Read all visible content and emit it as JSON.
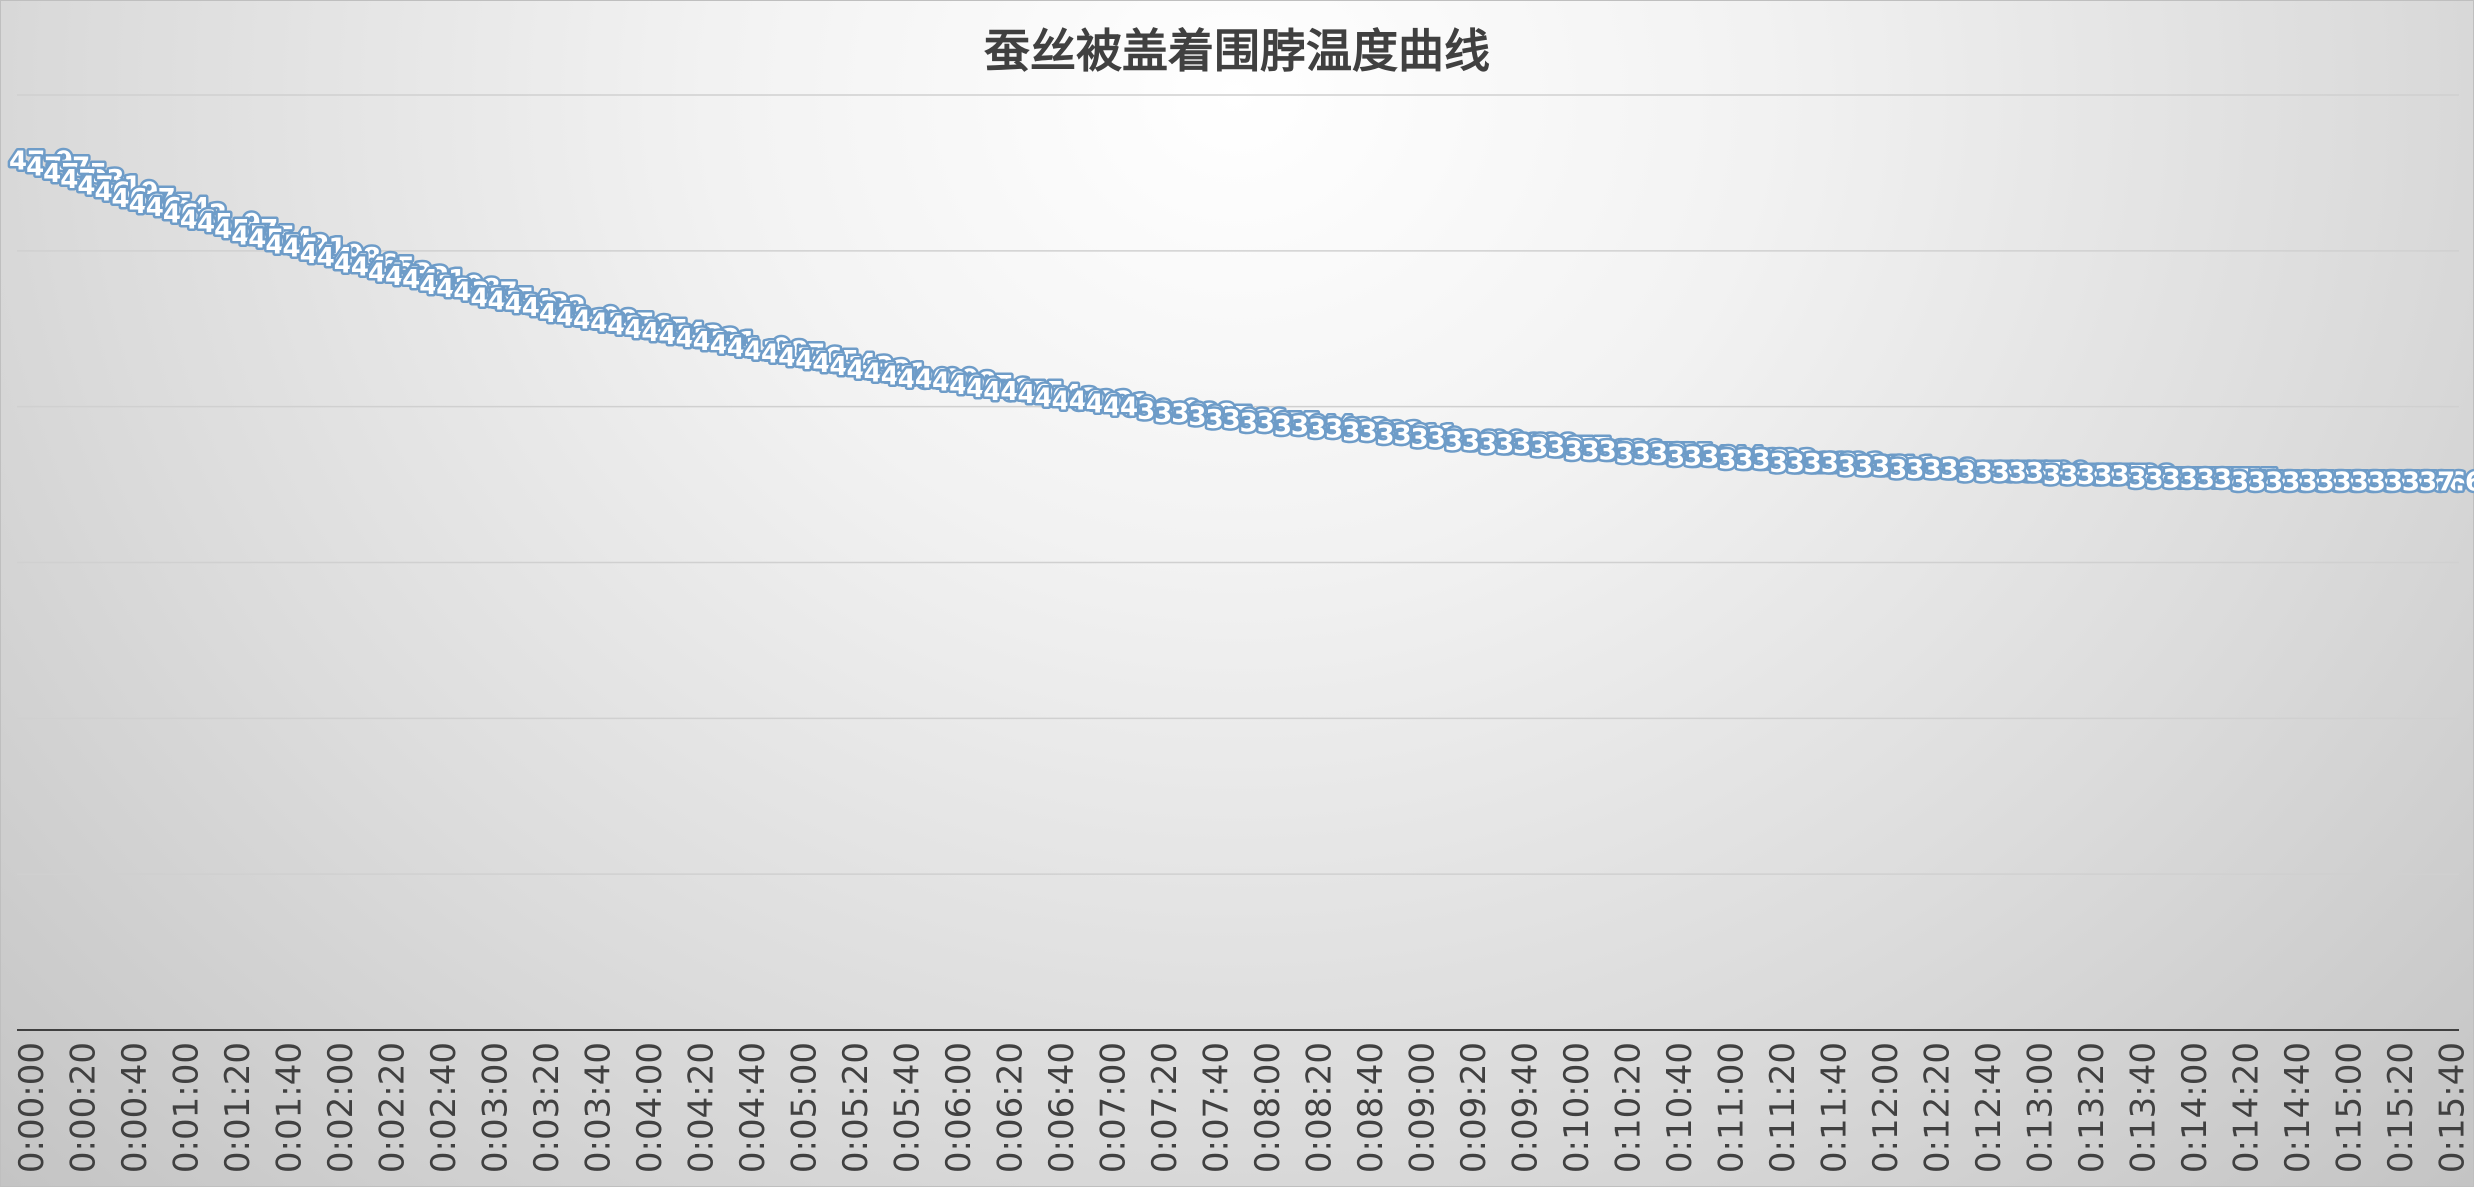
{
  "chart_data": {
    "type": "line",
    "title": "蚕丝被盖着围脖温度曲线",
    "xlabel": "",
    "ylabel": "",
    "x_ticks": [
      "0:00:00",
      "0:00:20",
      "0:00:40",
      "0:01:00",
      "0:01:20",
      "0:01:40",
      "0:02:00",
      "0:02:20",
      "0:02:40",
      "0:03:00",
      "0:03:20",
      "0:03:40",
      "0:04:00",
      "0:04:20",
      "0:04:40",
      "0:05:00",
      "0:05:20",
      "0:05:40",
      "0:06:00",
      "0:06:20",
      "0:06:40",
      "0:07:00",
      "0:07:20",
      "0:07:40",
      "0:08:00",
      "0:08:20",
      "0:08:40",
      "0:09:00",
      "0:09:20",
      "0:09:40",
      "0:10:00",
      "0:10:20",
      "0:10:40",
      "0:11:00",
      "0:11:20",
      "0:11:40",
      "0:12:00",
      "0:12:20",
      "0:12:40",
      "0:13:00",
      "0:13:20",
      "0:13:40",
      "0:14:00",
      "0:14:20",
      "0:14:40",
      "0:15:00",
      "0:15:20",
      "0:15:40"
    ],
    "series": [
      {
        "color": "#6e9cc8",
        "values": [
          47.9,
          47.7,
          47.5,
          47.3,
          47.1,
          46.9,
          46.7,
          46.5,
          46.4,
          46.2,
          46.0,
          45.9,
          45.7,
          45.5,
          45.4,
          45.2,
          45.1,
          44.9,
          44.8,
          44.6,
          44.5,
          44.3,
          44.2,
          44.1,
          43.9,
          43.8,
          43.7,
          43.5,
          43.4,
          43.3,
          43.2,
          43.0,
          42.9,
          42.8,
          42.7,
          42.6,
          42.5,
          42.4,
          42.3,
          42.2,
          42.1,
          42.0,
          41.9,
          41.8,
          41.7,
          41.6,
          41.5,
          41.4,
          41.3,
          41.2,
          41.1,
          41.0,
          40.9,
          40.9,
          40.8,
          40.7,
          40.6,
          40.5,
          40.5,
          40.4,
          40.3,
          40.2,
          40.2,
          40.1,
          40.0,
          40.0,
          39.9,
          39.8,
          39.8,
          39.7,
          39.6,
          39.6,
          39.5,
          39.5,
          39.4,
          39.4,
          39.3,
          39.3,
          39.2,
          39.2,
          39.1,
          39.1,
          39.0,
          39.0,
          38.9,
          38.9,
          38.8,
          38.8,
          38.8,
          38.7,
          38.7,
          38.6,
          38.6,
          38.6,
          38.5,
          38.5,
          38.5,
          38.4,
          38.4,
          38.4,
          38.3,
          38.3,
          38.3,
          38.2,
          38.2,
          38.2,
          38.2,
          38.1,
          38.1,
          38.1,
          38.0,
          38.0,
          38.0,
          38.0,
          37.9,
          37.9,
          37.9,
          37.9,
          37.9,
          37.8,
          37.8,
          37.8,
          37.8,
          37.8,
          37.7,
          37.7,
          37.7,
          37.7,
          37.7,
          37.7,
          37.6,
          37.6,
          37.6,
          37.6,
          37.6,
          37.6,
          37.6,
          37.6,
          37.6,
          37.6,
          37.6,
          37.6
        ]
      }
    ],
    "ylim": [
      20,
      50
    ],
    "grid": true,
    "legend": "none",
    "data_labels": true
  }
}
